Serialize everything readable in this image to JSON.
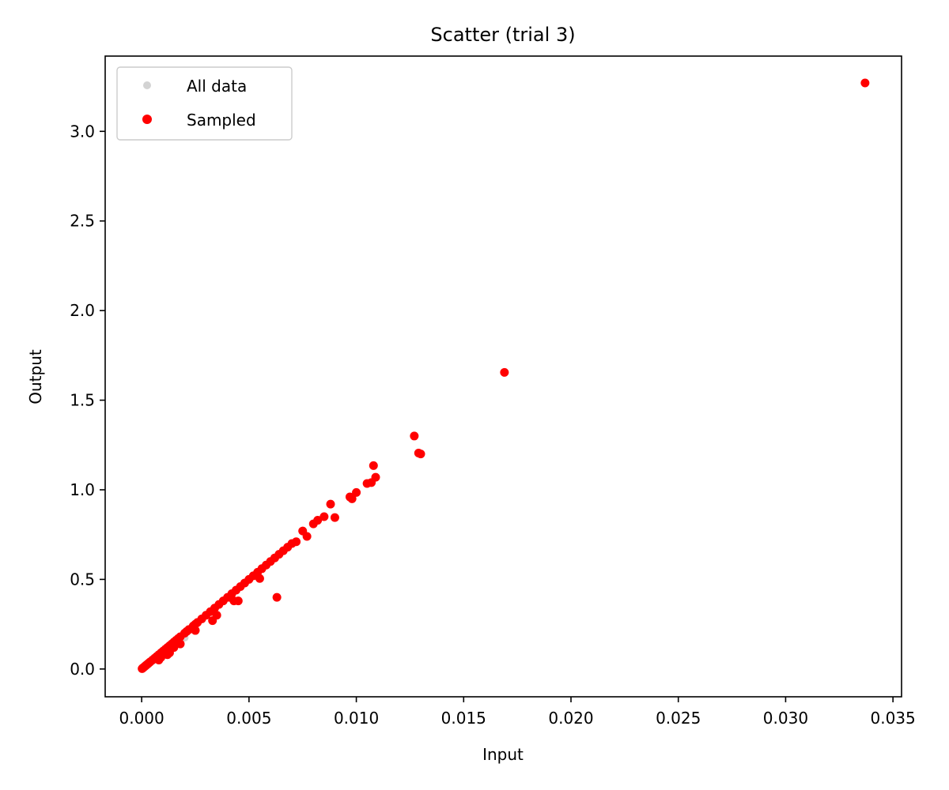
{
  "chart_data": {
    "type": "scatter",
    "title": "Scatter (trial 3)",
    "xlabel": "Input",
    "ylabel": "Output",
    "xlim": [
      -0.0017,
      0.0354
    ],
    "ylim": [
      -0.155,
      3.42
    ],
    "x_ticks": [
      {
        "value": 0.0,
        "label": "0.000"
      },
      {
        "value": 0.005,
        "label": "0.005"
      },
      {
        "value": 0.01,
        "label": "0.010"
      },
      {
        "value": 0.015,
        "label": "0.015"
      },
      {
        "value": 0.02,
        "label": "0.020"
      },
      {
        "value": 0.025,
        "label": "0.025"
      },
      {
        "value": 0.03,
        "label": "0.030"
      },
      {
        "value": 0.035,
        "label": "0.035"
      }
    ],
    "y_ticks": [
      {
        "value": 0.0,
        "label": "0.0"
      },
      {
        "value": 0.5,
        "label": "0.5"
      },
      {
        "value": 1.0,
        "label": "1.0"
      },
      {
        "value": 1.5,
        "label": "1.5"
      },
      {
        "value": 2.0,
        "label": "2.0"
      },
      {
        "value": 2.5,
        "label": "2.5"
      },
      {
        "value": 3.0,
        "label": "3.0"
      }
    ],
    "grid": false,
    "legend_position": "top-left",
    "series": [
      {
        "name": "All data",
        "color": "#d3d3d3",
        "x": [
          0.0001,
          0.0003,
          0.0005,
          0.0008,
          0.0012,
          0.0015,
          0.002,
          0.0025
        ],
        "y": [
          0.008,
          0.025,
          0.045,
          0.07,
          0.105,
          0.13,
          0.175,
          0.215
        ]
      },
      {
        "name": "Sampled",
        "color": "#ff0000",
        "x": [
          2e-05,
          5e-05,
          0.0001,
          0.00015,
          0.0002,
          0.00025,
          0.0003,
          0.00035,
          0.0004,
          0.0005,
          0.0006,
          0.0007,
          0.0008,
          0.0009,
          0.001,
          0.0011,
          0.0012,
          0.0013,
          0.0014,
          0.0015,
          0.0016,
          0.0017,
          0.0018,
          0.002,
          0.0021,
          0.0022,
          0.0024,
          0.0025,
          0.0026,
          0.0028,
          0.003,
          0.0032,
          0.0034,
          0.0036,
          0.0038,
          0.004,
          0.0042,
          0.0044,
          0.0046,
          0.0048,
          0.005,
          0.0052,
          0.0054,
          0.0056,
          0.0058,
          0.006,
          0.0062,
          0.0064,
          0.0066,
          0.0068,
          0.007,
          0.0072,
          0.0075,
          0.0077,
          0.008,
          0.0082,
          0.0085,
          0.0088,
          0.009,
          0.0097,
          0.0098,
          0.01,
          0.0105,
          0.0107,
          0.0108,
          0.0109,
          0.0127,
          0.0129,
          0.013,
          0.0169,
          0.0337,
          0.0063,
          0.0045,
          0.0035,
          0.0025,
          0.0015,
          0.0012,
          0.0008,
          0.0055,
          0.0043,
          0.0033,
          0.0041,
          0.0018,
          0.0013,
          0.0009
        ],
        "y": [
          0.002,
          0.005,
          0.01,
          0.015,
          0.02,
          0.025,
          0.03,
          0.035,
          0.04,
          0.05,
          0.06,
          0.07,
          0.08,
          0.09,
          0.1,
          0.11,
          0.12,
          0.13,
          0.14,
          0.15,
          0.16,
          0.17,
          0.18,
          0.2,
          0.21,
          0.22,
          0.24,
          0.25,
          0.26,
          0.28,
          0.3,
          0.32,
          0.34,
          0.36,
          0.38,
          0.4,
          0.42,
          0.44,
          0.46,
          0.48,
          0.5,
          0.52,
          0.54,
          0.56,
          0.58,
          0.6,
          0.62,
          0.64,
          0.66,
          0.68,
          0.7,
          0.71,
          0.77,
          0.74,
          0.81,
          0.83,
          0.85,
          0.92,
          0.845,
          0.96,
          0.95,
          0.985,
          1.035,
          1.04,
          1.135,
          1.07,
          1.3,
          1.205,
          1.2,
          1.655,
          3.27,
          0.4,
          0.38,
          0.3,
          0.215,
          0.12,
          0.08,
          0.05,
          0.505,
          0.38,
          0.27,
          0.4,
          0.14,
          0.09,
          0.065
        ]
      }
    ]
  }
}
